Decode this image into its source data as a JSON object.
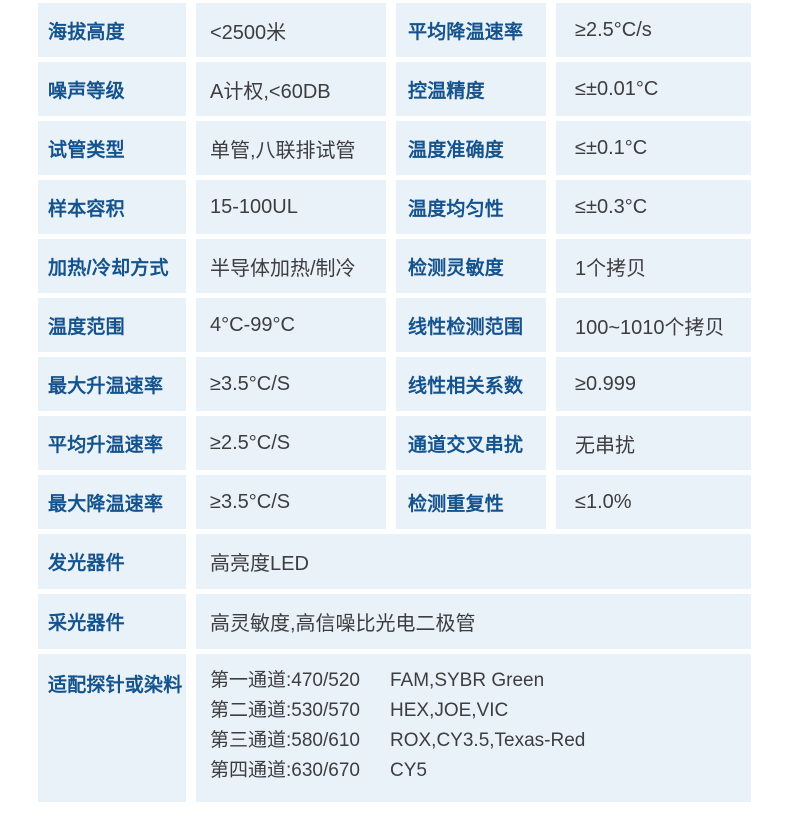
{
  "colors": {
    "cell_background": "#eaf2f9",
    "label_text": "#14538d",
    "value_text": "#3d3d40",
    "page_background": "#ffffff"
  },
  "specs": {
    "rows": [
      {
        "cells": [
          {
            "label": "海拔高度",
            "value": "<2500米"
          },
          {
            "label": "平均降温速率",
            "value": "≥2.5°C/s"
          }
        ]
      },
      {
        "cells": [
          {
            "label": "噪声等级",
            "value": "A计权,<60DB"
          },
          {
            "label": "控温精度",
            "value": "≤±0.01°C"
          }
        ]
      },
      {
        "cells": [
          {
            "label": "试管类型",
            "value": "单管,八联排试管"
          },
          {
            "label": "温度准确度",
            "value": "≤±0.1°C"
          }
        ]
      },
      {
        "cells": [
          {
            "label": "样本容积",
            "value": "15-100UL"
          },
          {
            "label": "温度均匀性",
            "value": "≤±0.3°C"
          }
        ]
      },
      {
        "cells": [
          {
            "label": "加热/冷却方式",
            "value": "半导体加热/制冷"
          },
          {
            "label": "检测灵敏度",
            "value": "1个拷贝"
          }
        ]
      },
      {
        "cells": [
          {
            "label": "温度范围",
            "value": "4°C-99°C"
          },
          {
            "label": "线性检测范围",
            "value": "100~1010个拷贝"
          }
        ]
      },
      {
        "cells": [
          {
            "label": "最大升温速率",
            "value": "≥3.5°C/S"
          },
          {
            "label": "线性相关系数",
            "value": "≥0.999"
          }
        ]
      },
      {
        "cells": [
          {
            "label": "平均升温速率",
            "value": "≥2.5°C/S"
          },
          {
            "label": "通道交叉串扰",
            "value": "无串扰"
          }
        ]
      },
      {
        "cells": [
          {
            "label": "最大降温速率",
            "value": "≥3.5°C/S"
          },
          {
            "label": "检测重复性",
            "value": "≤1.0%"
          }
        ]
      }
    ],
    "wide_rows": [
      {
        "label": "发光器件",
        "value": "高亮度LED"
      },
      {
        "label": "采光器件",
        "value": "高灵敏度,高信噪比光电二极管"
      }
    ],
    "probe_row": {
      "label": "适配探针或染料",
      "channels": [
        {
          "name": "第一通道:470/520",
          "dyes": "FAM,SYBR Green"
        },
        {
          "name": "第二通道:530/570",
          "dyes": "HEX,JOE,VIC"
        },
        {
          "name": "第三通道:580/610",
          "dyes": "ROX,CY3.5,Texas-Red"
        },
        {
          "name": "第四通道:630/670",
          "dyes": "CY5"
        }
      ]
    }
  }
}
